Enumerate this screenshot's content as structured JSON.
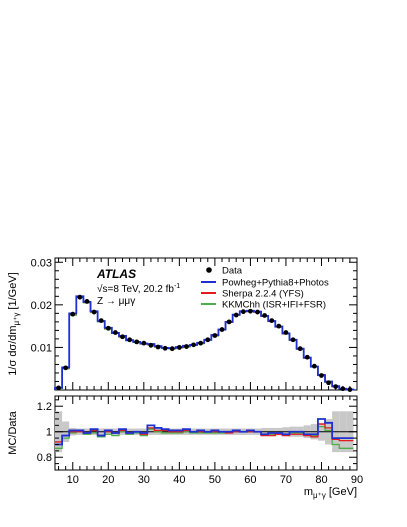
{
  "chart_data": {
    "type": "line",
    "experiment": "ATLAS",
    "energy_label": "√s=8 TeV, 20.2 fb",
    "energy_superscript": "-1",
    "process": "Z → μμγ",
    "xlabel": "m",
    "xlabel_subscript": "μ⁺γ",
    "xlabel_unit": "[GeV]",
    "xlim": [
      5,
      90
    ],
    "x_ticks": [
      "10",
      "20",
      "30",
      "40",
      "50",
      "60",
      "70",
      "80",
      "90"
    ],
    "x_tick_values": [
      10,
      20,
      30,
      40,
      50,
      60,
      70,
      80,
      90
    ],
    "bin_edges": [
      5,
      7,
      9,
      11,
      13,
      15,
      17,
      19,
      21,
      23,
      25,
      27,
      29,
      31,
      33,
      35,
      37,
      39,
      41,
      43,
      45,
      47,
      49,
      51,
      53,
      55,
      57,
      59,
      61,
      63,
      65,
      67,
      69,
      71,
      73,
      75,
      77,
      79,
      81,
      83,
      85,
      87,
      89
    ],
    "top_panel": {
      "ylabel": "1/σ dσ/dm",
      "ylabel_subscript": "μ⁺γ",
      "ylabel_unit": "[1/GeV]",
      "ylim": [
        0,
        0.031
      ],
      "y_ticks": [
        "0.01",
        "0.02",
        "0.03"
      ],
      "y_tick_values": [
        0.01,
        0.02,
        0.03
      ]
    },
    "ratio_panel": {
      "ylabel": "MC/Data",
      "ylim": [
        0.7,
        1.28
      ],
      "y_ticks": [
        "0.8",
        "1",
        "1.2"
      ],
      "y_tick_values": [
        0.8,
        1.0,
        1.2
      ]
    },
    "legend": {
      "placement": "top-right",
      "entries": [
        {
          "label": "Data",
          "marker": "dot",
          "color": "#000000"
        },
        {
          "label": "Powheg+Pythia8+Photos",
          "marker": "line",
          "color": "#1f2fd0"
        },
        {
          "label": "Sherpa 2.2.4 (YFS)",
          "marker": "line",
          "color": "#e41a1c"
        },
        {
          "label": "KKMChh (ISR+IFI+FSR)",
          "marker": "line",
          "color": "#4daf4a"
        }
      ]
    },
    "data": [
      0.0005,
      0.0052,
      0.0178,
      0.0218,
      0.0208,
      0.0183,
      0.0163,
      0.0145,
      0.0135,
      0.0125,
      0.0118,
      0.0113,
      0.011,
      0.0105,
      0.0101,
      0.0098,
      0.0097,
      0.01,
      0.0102,
      0.0106,
      0.011,
      0.0118,
      0.0128,
      0.0142,
      0.016,
      0.0176,
      0.0184,
      0.0185,
      0.0183,
      0.0175,
      0.0163,
      0.015,
      0.0135,
      0.0118,
      0.0097,
      0.0077,
      0.0056,
      0.0034,
      0.0017,
      0.0008,
      0.0003,
      0.0001
    ],
    "series": [
      {
        "name": "Powheg+Pythia8+Photos",
        "color": "#1f2fd0",
        "values": [
          0.0005,
          0.0053,
          0.018,
          0.022,
          0.0207,
          0.0185,
          0.0162,
          0.0146,
          0.0134,
          0.0127,
          0.0117,
          0.0113,
          0.0109,
          0.0108,
          0.0103,
          0.0099,
          0.0098,
          0.0101,
          0.0104,
          0.0106,
          0.0111,
          0.0118,
          0.0129,
          0.0142,
          0.016,
          0.0177,
          0.0185,
          0.0186,
          0.0184,
          0.0174,
          0.0162,
          0.0149,
          0.0133,
          0.0118,
          0.0097,
          0.0076,
          0.0055,
          0.0035,
          0.002,
          0.0009,
          0.0003,
          0.0001
        ],
        "ratio": [
          0.9,
          0.97,
          1.01,
          1.01,
          0.99,
          1.02,
          0.97,
          1.01,
          0.99,
          1.02,
          0.99,
          1,
          0.99,
          1.05,
          1.03,
          1.02,
          1.01,
          1.01,
          1.02,
          1,
          1.01,
          1,
          1.01,
          1,
          1,
          1.01,
          1,
          1.01,
          1,
          0.98,
          0.99,
          0.99,
          0.98,
          1,
          1,
          0.98,
          0.98,
          1.1,
          1.07,
          0.95,
          0.95,
          0.95
        ]
      },
      {
        "name": "Sherpa 2.2.4 (YFS)",
        "color": "#e41a1c",
        "values": [
          0.0005,
          0.0052,
          0.0179,
          0.0219,
          0.0206,
          0.0184,
          0.0162,
          0.0145,
          0.0134,
          0.0126,
          0.0117,
          0.0113,
          0.0109,
          0.0107,
          0.0102,
          0.0099,
          0.0098,
          0.01,
          0.0103,
          0.0106,
          0.011,
          0.0118,
          0.0128,
          0.0142,
          0.0159,
          0.0176,
          0.0184,
          0.0185,
          0.0183,
          0.0173,
          0.0161,
          0.0148,
          0.0132,
          0.0117,
          0.0096,
          0.0075,
          0.0055,
          0.0036,
          0.0019,
          0.0008,
          0.0003,
          0.0001
        ],
        "ratio": [
          0.92,
          0.97,
          1,
          1,
          0.99,
          1.01,
          0.97,
          1,
          0.99,
          1.01,
          0.99,
          1,
          0.98,
          1.03,
          1.01,
          1.01,
          1,
          1,
          1.01,
          1,
          1,
          1,
          1,
          1,
          0.99,
          1,
          1,
          1,
          1,
          0.97,
          0.97,
          0.98,
          0.97,
          0.98,
          0.98,
          0.97,
          0.96,
          1.06,
          1.03,
          0.94,
          0.93,
          0.93
        ]
      },
      {
        "name": "KKMChh (ISR+IFI+FSR)",
        "color": "#4daf4a",
        "values": [
          0.0004,
          0.005,
          0.0176,
          0.0217,
          0.0205,
          0.0182,
          0.016,
          0.0143,
          0.0133,
          0.0124,
          0.0116,
          0.0112,
          0.0108,
          0.0106,
          0.0101,
          0.0098,
          0.0097,
          0.0099,
          0.0101,
          0.0105,
          0.0109,
          0.0117,
          0.0127,
          0.0141,
          0.0159,
          0.0176,
          0.0184,
          0.0185,
          0.0183,
          0.0174,
          0.0162,
          0.0149,
          0.0133,
          0.0117,
          0.0096,
          0.0075,
          0.0054,
          0.0034,
          0.0018,
          0.0008,
          0.0003,
          0.0001
        ],
        "ratio": [
          0.87,
          0.95,
          0.99,
          1,
          0.98,
          0.99,
          0.96,
          0.98,
          0.97,
          1,
          0.98,
          0.99,
          0.97,
          1.02,
          1,
          0.99,
          0.99,
          0.99,
          1,
          0.99,
          0.99,
          0.99,
          0.99,
          0.99,
          1,
          1,
          1,
          1,
          1,
          0.98,
          0.98,
          0.99,
          0.98,
          0.99,
          0.99,
          0.98,
          0.97,
          1.04,
          1.01,
          0.9,
          0.87,
          0.87
        ]
      }
    ],
    "data_uncertainty_ratio": [
      0.16,
      0.08,
      0.03,
      0.025,
      0.025,
      0.025,
      0.025,
      0.025,
      0.025,
      0.025,
      0.025,
      0.025,
      0.025,
      0.025,
      0.025,
      0.025,
      0.025,
      0.025,
      0.025,
      0.025,
      0.025,
      0.025,
      0.025,
      0.025,
      0.025,
      0.025,
      0.025,
      0.025,
      0.025,
      0.03,
      0.03,
      0.03,
      0.035,
      0.04,
      0.04,
      0.05,
      0.06,
      0.07,
      0.1,
      0.16,
      0.16,
      0.16
    ],
    "grid": false
  }
}
